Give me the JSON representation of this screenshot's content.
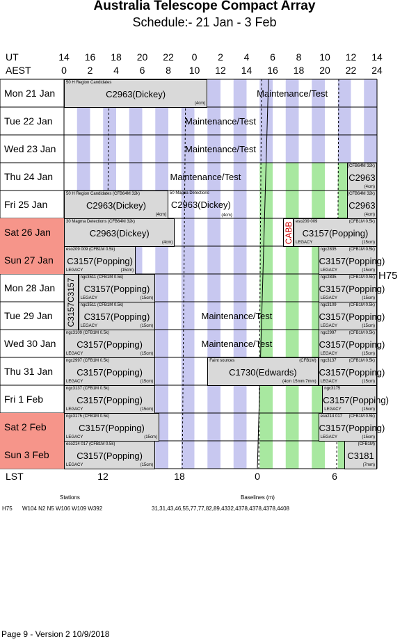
{
  "title": "Australia Telescope Compact Array",
  "subtitle": "Schedule:- 21 Jan - 3  Feb",
  "ut_label": "UT",
  "aest_label": "AEST",
  "ut_hours": [
    "14",
    "16",
    "18",
    "20",
    "22",
    "0",
    "2",
    "4",
    "6",
    "8",
    "10",
    "12",
    "14"
  ],
  "aest_hours": [
    "0",
    "2",
    "4",
    "6",
    "8",
    "10",
    "12",
    "14",
    "16",
    "18",
    "20",
    "22",
    "24"
  ],
  "lst_label": "LST",
  "lst_ticks": [
    "12",
    "18",
    "0",
    "6"
  ],
  "config": "H75",
  "colors": {
    "lavender": "#c8c8f0",
    "green": "#a8e8a0",
    "gray": "#d9d9d9",
    "weekend": "#f6958a"
  },
  "days": [
    {
      "label": "Mon   21 Jan",
      "weekend": false
    },
    {
      "label": "Tue   22 Jan",
      "weekend": false
    },
    {
      "label": "Wed   23 Jan",
      "weekend": false
    },
    {
      "label": "Thu   24 Jan",
      "weekend": false
    },
    {
      "label": "Fri    25 Jan",
      "weekend": false
    },
    {
      "label": "Sat   26 Jan",
      "weekend": true
    },
    {
      "label": "Sun   27 Jan",
      "weekend": true
    },
    {
      "label": "Mon   28 Jan",
      "weekend": false
    },
    {
      "label": "Tue   29 Jan",
      "weekend": false
    },
    {
      "label": "Wed   30 Jan",
      "weekend": false
    },
    {
      "label": "Thu   31 Jan",
      "weekend": false
    },
    {
      "label": "Fri     1 Feb",
      "weekend": false
    },
    {
      "label": "Sat    2 Feb",
      "weekend": true
    },
    {
      "label": "Sun   3 Feb",
      "weekend": true
    }
  ],
  "blocks": [
    {
      "row": 0,
      "h0": 0,
      "h1": 11,
      "gray": true,
      "main": "C2963(Dickey)",
      "tl": "50 H   Region Candidates",
      "br": "(4cm)"
    },
    {
      "row": 0,
      "h0": 11,
      "h1": 24,
      "gray": false,
      "main": "Maintenance/Test"
    },
    {
      "row": 1,
      "h0": 0,
      "h1": 24,
      "gray": false,
      "main": "Maintenance/Test"
    },
    {
      "row": 2,
      "h0": 0,
      "h1": 24,
      "gray": false,
      "main": "Maintenance/Test"
    },
    {
      "row": 3,
      "h0": 0,
      "h1": 21.7,
      "gray": false,
      "main": "Maintenance/Test"
    },
    {
      "row": 3,
      "h0": 21.7,
      "h1": 24,
      "gray": true,
      "main": "C2963",
      "tr": "(CFB64M 32k)",
      "br": "(4cm)"
    },
    {
      "row": 4,
      "h0": 0,
      "h1": 8,
      "gray": true,
      "main": "C2963(Dickey)",
      "tl": "50 H   Region Candidates  (CFB64M 32k)",
      "br": "(4cm)"
    },
    {
      "row": 4,
      "h0": 8,
      "h1": 13,
      "gray": false,
      "main": "C2963(Dickey)",
      "tl": "50 Magna  Detections",
      "br": "(4cm)"
    },
    {
      "row": 4,
      "h0": 21.7,
      "h1": 24,
      "gray": true,
      "main": "C2963",
      "tr": "(CFB64M 32k)",
      "br": "(4cm)"
    },
    {
      "row": 5,
      "h0": 0,
      "h1": 8.5,
      "gray": true,
      "main": "C2963(Dickey)",
      "tl": "30 Magma  Detections        (CFB64M 32k)",
      "br": "(4cm)"
    },
    {
      "row": 5,
      "h0": 16.8,
      "h1": 17.6,
      "gray": false,
      "main": "CABB",
      "vertical": true
    },
    {
      "row": 5,
      "h0": 17.6,
      "h1": 24,
      "gray": true,
      "main": "C3157(Popping)",
      "tl": "eso209 009",
      "tr": "(CFB1M 0.5k)",
      "bl": "LEGACY",
      "br": "(15cm)"
    },
    {
      "row": 6,
      "h0": 0,
      "h1": 5.5,
      "gray": true,
      "main": "C3157(Popping)",
      "tl": "eso209 009        (CFB1M 0.5k)",
      "bl": "LEGACY",
      "br": "(15cm)"
    },
    {
      "row": 6,
      "h0": 19.5,
      "h1": 24,
      "gray": true,
      "main": "C3157(Popping)",
      "tl": "ngc2835",
      "tr": "(CFB1M 0.5k)",
      "bl": "LEGACY",
      "br": "(15cm)"
    },
    {
      "row": 7,
      "h0": 0,
      "h1": 1.1,
      "gray": true,
      "main": "C3157C3157",
      "vertical": true,
      "span": 2
    },
    {
      "row": 7,
      "h0": 1.1,
      "h1": 7,
      "gray": true,
      "main": "C3157(Popping)",
      "tl": "ngc3511       (CFB1M 0.5k)",
      "bl": "LEGACY",
      "br": "(15cm)"
    },
    {
      "row": 7,
      "h0": 19.5,
      "h1": 24,
      "gray": true,
      "main": "C3157(Popping)",
      "tl": "ngc2835",
      "tr": "(CFB1M 0.5k)",
      "bl": "LEGACY",
      "br": "(15cm)"
    },
    {
      "row": 8,
      "h0": 1.1,
      "h1": 7,
      "gray": true,
      "main": "C3157(Popping)",
      "tl": "ngc3511       (CFB1M 0.5k)",
      "bl": "LEGACY",
      "br": "(15cm)"
    },
    {
      "row": 8,
      "h0": 7,
      "h1": 19.5,
      "gray": false,
      "main": "Maintenance/Test"
    },
    {
      "row": 8,
      "h0": 19.5,
      "h1": 24,
      "gray": true,
      "main": "C3157(Popping)",
      "tl": "ngc3109",
      "tr": "(CFB1M 0.5k)",
      "bl": "LEGACY",
      "br": "(15cm)"
    },
    {
      "row": 9,
      "h0": 0,
      "h1": 7,
      "gray": true,
      "main": "C3157(Popping)",
      "tl": "ngc3109        (CFB1M 0.5k)",
      "bl": "LEGACY",
      "br": "(15cm)"
    },
    {
      "row": 9,
      "h0": 7,
      "h1": 19.5,
      "gray": false,
      "main": "Maintenance/Test"
    },
    {
      "row": 9,
      "h0": 19.5,
      "h1": 24,
      "gray": true,
      "main": "C3157(Popping)",
      "tl": "ngc2997",
      "tr": "(CFB1M 0.5k)",
      "bl": "LEGACY",
      "br": "(15cm)"
    },
    {
      "row": 10,
      "h0": 0,
      "h1": 7,
      "gray": true,
      "main": "C3157(Popping)",
      "tl": "ngc2997        (CFB1M 0.5k)",
      "bl": "LEGACY",
      "br": "(15cm)"
    },
    {
      "row": 10,
      "h0": 11,
      "h1": 19.5,
      "gray": true,
      "main": "C1730(Edwards)",
      "tl": "Faint sources",
      "tr": "(CFB1M)",
      "br": "(4cm 15mm 7mm)"
    },
    {
      "row": 10,
      "h0": 19.5,
      "h1": 24,
      "gray": true,
      "main": "C3157(Popping)",
      "tl": "ngc3137",
      "tr": "(CFB1M 0.5k)",
      "bl": "LEGACY",
      "br": "(15cm)"
    },
    {
      "row": 11,
      "h0": 0,
      "h1": 7,
      "gray": true,
      "main": "C3157(Popping)",
      "tl": "ngc3137        (CFB1M 0.5k)",
      "bl": "LEGACY",
      "br": "(15cm)"
    },
    {
      "row": 11,
      "h0": 19.8,
      "h1": 24,
      "gray": true,
      "main": "C3157(Popping)",
      "tl": "ngc3175",
      "bl": "LEGACY",
      "br": "(15cm)"
    },
    {
      "row": 12,
      "h0": 0,
      "h1": 7.3,
      "gray": true,
      "main": "C3157(Popping)",
      "tl": "ngc3175        (CFB1M 0.5k)",
      "bl": "LEGACY",
      "br": "(15cm)"
    },
    {
      "row": 12,
      "h0": 19.5,
      "h1": 24,
      "gray": true,
      "main": "C3157(Popping)",
      "tl": "eso214 017",
      "tr": "(CFB1M 0.5k)",
      "bl": "LEGACY",
      "br": "(15cm)"
    },
    {
      "row": 13,
      "h0": 0,
      "h1": 7,
      "gray": true,
      "main": "C3157(Popping)",
      "tl": "eso214 017      (CFB1M 0.5k)",
      "bl": "LEGACY",
      "br": "(15cm)"
    },
    {
      "row": 13,
      "h0": 21.5,
      "h1": 24,
      "gray": true,
      "main": "C3181",
      "tr": "(CFB1M)",
      "br": "(7mm)"
    }
  ],
  "footer": {
    "stations_label": "Stations",
    "baselines_label": "Baselines (m)",
    "config": "H75",
    "stations": "W104  N2  N5  W106  W109  W392",
    "baselines": "31,31,43,46,55,77,77,82,89,4332,4378,4378,4378,4408",
    "page": "Page 9 - Version 2  10/9/2018"
  }
}
